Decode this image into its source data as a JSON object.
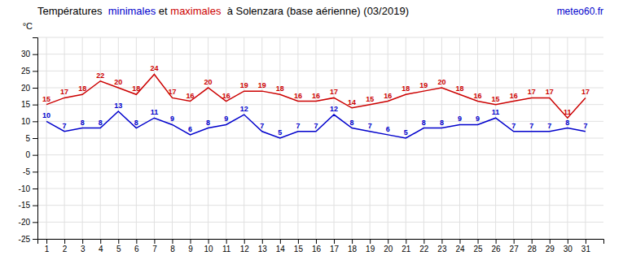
{
  "chart_data": {
    "type": "line",
    "title": "Températures  minimales et maximales  à Solenzara (base aérienne) (03/2019)",
    "y_label": "°C",
    "annotations": [
      {
        "text": "meteo60.fr",
        "color": "#0000cc"
      }
    ],
    "x": [
      1,
      2,
      3,
      4,
      5,
      6,
      7,
      8,
      9,
      10,
      11,
      12,
      13,
      14,
      15,
      16,
      17,
      18,
      19,
      20,
      21,
      22,
      23,
      24,
      25,
      26,
      27,
      28,
      29,
      30,
      31
    ],
    "series": [
      {
        "name": "minimales",
        "color": "#0000cc",
        "values": [
          10,
          7,
          8,
          8,
          13,
          8,
          11,
          9,
          6,
          8,
          9,
          12,
          7,
          5,
          7,
          7,
          12,
          8,
          7,
          6,
          5,
          8,
          8,
          9,
          9,
          11,
          7,
          7,
          7,
          8,
          7
        ]
      },
      {
        "name": "maximales",
        "color": "#cc0000",
        "values": [
          15,
          17,
          18,
          22,
          20,
          18,
          24,
          17,
          16,
          20,
          16,
          19,
          19,
          18,
          16,
          16,
          17,
          14,
          15,
          16,
          18,
          19,
          20,
          18,
          16,
          15,
          16,
          17,
          17,
          11,
          17
        ]
      }
    ],
    "xlim": [
      0.5,
      32
    ],
    "xticks": [
      1,
      2,
      3,
      4,
      5,
      6,
      7,
      8,
      9,
      10,
      11,
      12,
      13,
      14,
      15,
      16,
      17,
      18,
      19,
      20,
      21,
      22,
      23,
      24,
      25,
      26,
      27,
      28,
      29,
      30,
      31
    ],
    "ylim": [
      -25,
      35
    ],
    "yticks": [
      -25,
      -20,
      -15,
      -10,
      -5,
      0,
      5,
      10,
      15,
      20,
      25,
      30,
      {
        "value": 35,
        "label": null
      }
    ],
    "grid": true,
    "data_labels": true
  }
}
